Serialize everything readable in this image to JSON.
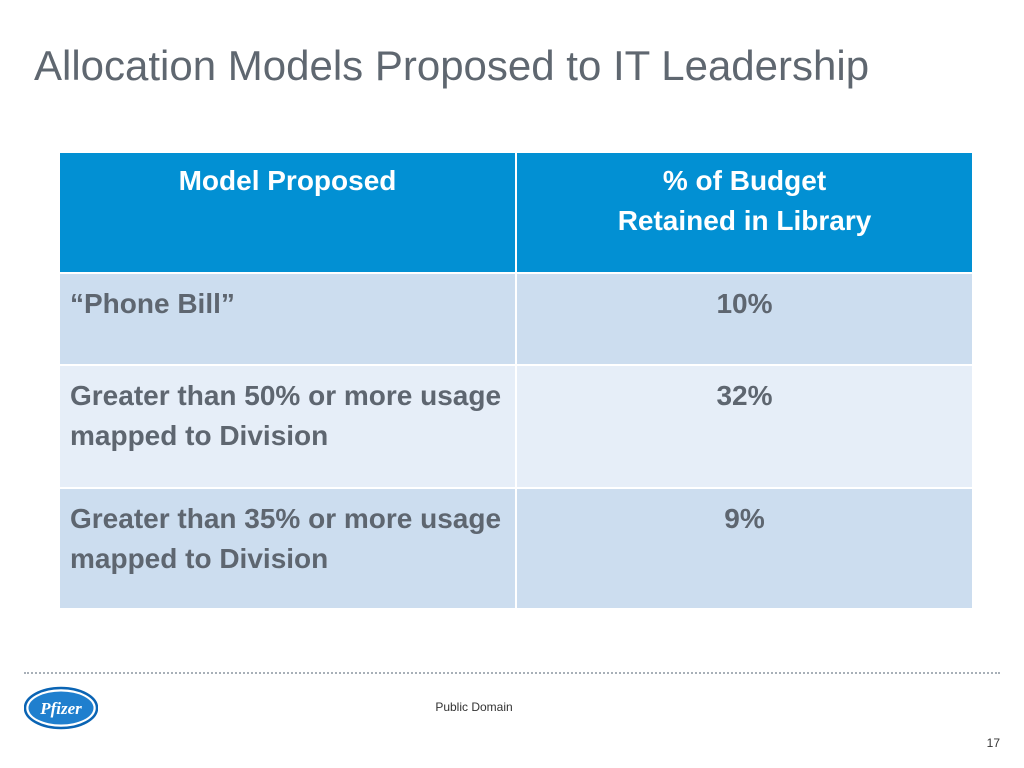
{
  "slide": {
    "title": "Allocation Models Proposed to IT Leadership",
    "table": {
      "headers": [
        "Model Proposed",
        "% of Budget\nRetained in Library"
      ],
      "rows": [
        {
          "model": "“Phone Bill”",
          "value": "10%"
        },
        {
          "model": "Greater than 50% or more usage mapped to Division",
          "value": "32%"
        },
        {
          "model": "Greater than 35% or more usage mapped to Division",
          "value": "9%"
        }
      ]
    },
    "footer": {
      "logo_text": "Pfizer",
      "logo_icon": "pfizer-logo-icon",
      "text": "Public Domain",
      "page_number": "17"
    },
    "colors": {
      "header_bg": "#0290d3",
      "row_odd_bg": "#ccddef",
      "row_even_bg": "#e6eef8",
      "text_gray": "#5e6670"
    }
  }
}
